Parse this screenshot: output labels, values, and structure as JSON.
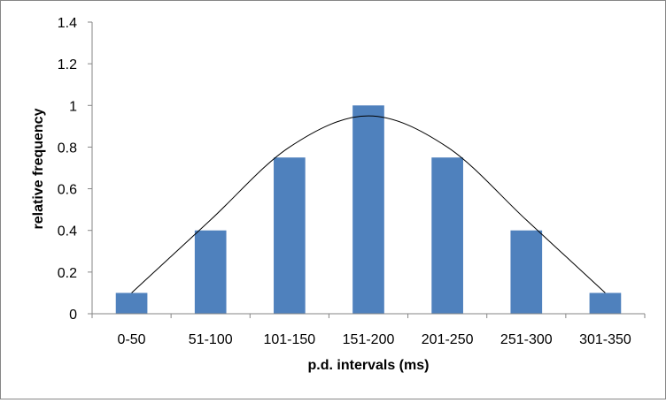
{
  "chart_data": {
    "type": "bar",
    "categories": [
      "0-50",
      "51-100",
      "101-150",
      "151-200",
      "201-250",
      "251-300",
      "301-350"
    ],
    "values": [
      0.1,
      0.4,
      0.75,
      1.0,
      0.75,
      0.4,
      0.1
    ],
    "xlabel": "p.d. intervals (ms)",
    "ylabel": "relative frequency",
    "ylim": [
      0,
      1.4
    ],
    "yticks": [
      "0",
      "0.2",
      "0.4",
      "0.6",
      "0.8",
      "1",
      "1.2",
      "1.4"
    ],
    "grid": false,
    "legend": "none",
    "bar_color": "#4f81bd",
    "curve": {
      "type": "line",
      "smooth": true,
      "color": "#000000",
      "values": [
        0.1,
        0.45,
        0.8,
        0.95,
        0.8,
        0.45,
        0.1
      ]
    }
  }
}
